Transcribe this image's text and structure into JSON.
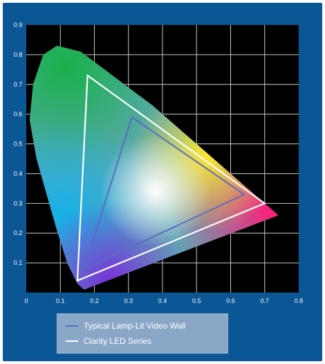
{
  "chart_data": {
    "type": "scatter",
    "title": "",
    "xlabel": "",
    "ylabel": "",
    "xlim": [
      0,
      0.8
    ],
    "ylim": [
      0,
      0.9
    ],
    "grid": true,
    "x_ticks": [
      "0",
      "0.1",
      "0.2",
      "0.3",
      "0.4",
      "0.5",
      "0.6",
      "0.7",
      "0.8"
    ],
    "y_ticks": [
      "0.1",
      "0.2",
      "0.3",
      "0.4",
      "0.5",
      "0.6",
      "0.7",
      "0.8",
      "0.9"
    ],
    "spectral_locus": [
      [
        0.74,
        0.26
      ],
      [
        0.69,
        0.31
      ],
      [
        0.64,
        0.36
      ],
      [
        0.58,
        0.42
      ],
      [
        0.52,
        0.48
      ],
      [
        0.45,
        0.55
      ],
      [
        0.37,
        0.63
      ],
      [
        0.3,
        0.69
      ],
      [
        0.23,
        0.75
      ],
      [
        0.16,
        0.81
      ],
      [
        0.09,
        0.83
      ],
      [
        0.05,
        0.8
      ],
      [
        0.02,
        0.7
      ],
      [
        0.01,
        0.58
      ],
      [
        0.03,
        0.45
      ],
      [
        0.06,
        0.33
      ],
      [
        0.09,
        0.21
      ],
      [
        0.12,
        0.1
      ],
      [
        0.15,
        0.03
      ],
      [
        0.17,
        0.01
      ]
    ],
    "series": [
      {
        "name": "Typical Lamp-Lit Video Wall",
        "color": "#5b6bbf",
        "points": [
          [
            0.31,
            0.59
          ],
          [
            0.64,
            0.33
          ],
          [
            0.17,
            0.08
          ]
        ]
      },
      {
        "name": "Clarity LED Series",
        "color": "#ffffff",
        "points": [
          [
            0.18,
            0.73
          ],
          [
            0.7,
            0.3
          ],
          [
            0.15,
            0.04
          ]
        ]
      }
    ],
    "legend_position": "bottom"
  },
  "legend": {
    "items": [
      {
        "label": "Typical Lamp-Lit Video Wall",
        "color": "#5b6bbf"
      },
      {
        "label": "Clarity LED Series",
        "color": "#ffffff"
      }
    ]
  }
}
